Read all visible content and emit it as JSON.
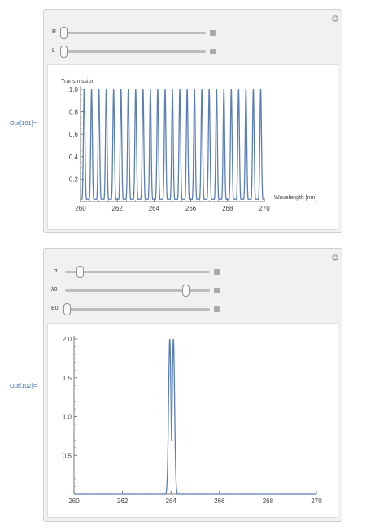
{
  "outputs": [
    {
      "label": "Out[101]="
    },
    {
      "label": "Out[102]="
    }
  ],
  "panel1": {
    "controls": [
      {
        "label": "R",
        "value_fraction": 0.0
      },
      {
        "label": "L",
        "value_fraction": 0.0
      }
    ]
  },
  "panel2": {
    "controls": [
      {
        "label": "σ",
        "value_fraction": 0.06
      },
      {
        "label": "λ0",
        "value_fraction": 0.83
      },
      {
        "label": "E0",
        "value_fraction": 0.0
      }
    ]
  },
  "colors": {
    "series": "#5a7fb6",
    "accent": "#3a6fb0"
  },
  "icons": {
    "expand": "plus-circle-icon",
    "slider_end": "square-button-icon"
  },
  "chart_data": [
    {
      "type": "line",
      "title": "",
      "ylabel": "Transmission",
      "xlabel": "Wavelength [nm]",
      "xlim": [
        260,
        270
      ],
      "ylim": [
        0,
        1.0
      ],
      "x_ticks": [
        "260",
        "262",
        "264",
        "266",
        "268",
        "270"
      ],
      "y_ticks": [
        "0.2",
        "0.4",
        "0.6",
        "0.8",
        "1.0"
      ],
      "series": [
        {
          "description_free": true,
          "peak_centers": [
            260.2,
            260.6,
            261.0,
            261.4,
            261.8,
            262.2,
            262.6,
            263.0,
            263.4,
            263.8,
            264.2,
            264.6,
            265.0,
            265.4,
            265.8,
            266.2,
            266.6,
            267.0,
            267.4,
            267.8,
            268.2,
            268.6,
            269.0,
            269.4,
            269.8
          ],
          "peak_value": 1.0,
          "trough_value": 0.02,
          "peak_half_width": 0.06
        }
      ]
    },
    {
      "type": "line",
      "title": "",
      "xlabel": "",
      "ylabel": "",
      "xlim": [
        260,
        270
      ],
      "ylim": [
        0,
        2.0
      ],
      "x_ticks": [
        "260",
        "262",
        "264",
        "266",
        "268",
        "270"
      ],
      "y_ticks": [
        "0.5",
        "1.0",
        "1.5",
        "2.0"
      ],
      "series": [
        {
          "peak_centers": [
            263.95,
            264.1
          ],
          "peak_value": 2.0,
          "peak_half_width": 0.07
        }
      ]
    }
  ]
}
